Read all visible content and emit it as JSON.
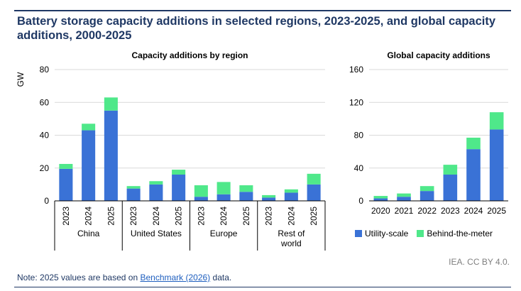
{
  "title": "Battery storage capacity additions in selected regions, 2023-2025, and global capacity additions, 2000-2025",
  "note": {
    "prefix": "Note: 2025 values are based on ",
    "link": "Benchmark (2026)",
    "suffix": " data."
  },
  "credit": "IEA. CC BY 4.0.",
  "legend": {
    "utility": "Utility-scale",
    "btm": "Behind-the-meter"
  },
  "colors": {
    "utility": "#3a72d6",
    "btm": "#4fe88a",
    "grid": "#d9d9d9",
    "axis": "#000000"
  },
  "chart_data": [
    {
      "type": "bar",
      "stacked": true,
      "title": "Capacity additions by region",
      "ylabel": "GW",
      "ylim": [
        0,
        80
      ],
      "yticks": [
        0,
        20,
        40,
        60,
        80
      ],
      "groups": [
        {
          "name": "China",
          "categories": [
            "2023",
            "2024",
            "2025"
          ]
        },
        {
          "name": "United States",
          "categories": [
            "2023",
            "2024",
            "2025"
          ]
        },
        {
          "name": "Europe",
          "categories": [
            "2023",
            "2024",
            "2025"
          ]
        },
        {
          "name": "Rest of world",
          "categories": [
            "2023",
            "2024",
            "2025"
          ]
        }
      ],
      "series": [
        {
          "name": "Utility-scale",
          "values": [
            19.5,
            43,
            55,
            7.5,
            10,
            16,
            2.5,
            4,
            5.5,
            2,
            5,
            10
          ]
        },
        {
          "name": "Behind-the-meter",
          "values": [
            3,
            4,
            8,
            1.5,
            2,
            3,
            7,
            7.5,
            4,
            1.5,
            2,
            6.5
          ]
        }
      ],
      "grid": true
    },
    {
      "type": "bar",
      "stacked": true,
      "title": "Global capacity additions",
      "ylim": [
        0,
        160
      ],
      "yticks": [
        0,
        40,
        80,
        120,
        160
      ],
      "categories": [
        "2020",
        "2021",
        "2022",
        "2023",
        "2024",
        "2025"
      ],
      "series": [
        {
          "name": "Utility-scale",
          "values": [
            3,
            5,
            12,
            32,
            63,
            87
          ]
        },
        {
          "name": "Behind-the-meter",
          "values": [
            3,
            4,
            6,
            12,
            14,
            21
          ]
        }
      ],
      "grid": true,
      "legend": "bottom"
    }
  ]
}
